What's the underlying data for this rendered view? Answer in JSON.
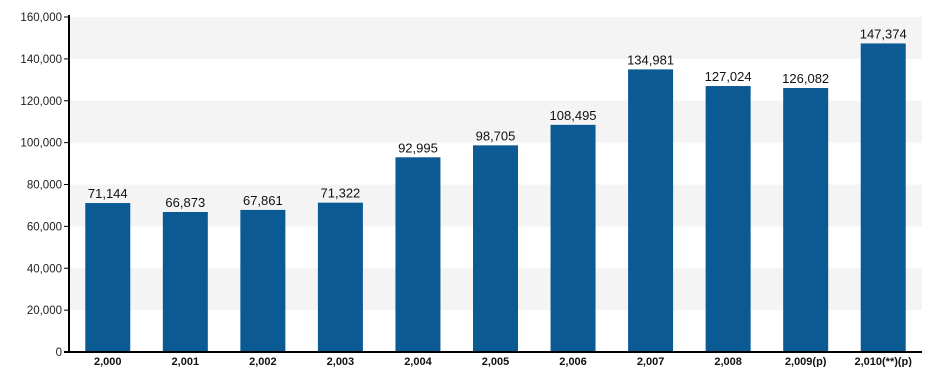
{
  "chart_data": {
    "type": "bar",
    "categories": [
      "2,000",
      "2,001",
      "2,002",
      "2,003",
      "2,004",
      "2,005",
      "2,006",
      "2,007",
      "2,008",
      "2,009(p)",
      "2,010(**)(p)"
    ],
    "values": [
      71144,
      66873,
      67861,
      71322,
      92995,
      98705,
      108495,
      134981,
      127024,
      126082,
      147374
    ],
    "data_labels": [
      "71,144",
      "66,873",
      "67,861",
      "71,322",
      "92,995",
      "98,705",
      "108,495",
      "134,981",
      "127,024",
      "126,082",
      "147,374"
    ],
    "y_ticks": [
      0,
      20000,
      40000,
      60000,
      80000,
      100000,
      120000,
      140000,
      160000
    ],
    "y_tick_labels": [
      "0",
      "20,000",
      "40,000",
      "60,000",
      "80,000",
      "100,000",
      "120,000",
      "140,000",
      "160,000"
    ],
    "ylim": [
      0,
      160000
    ],
    "grid": "alternating horizontal bands",
    "legend": "none",
    "colors": {
      "bar": "#0b5a94",
      "band": "#f4f4f4",
      "axis": "#000000"
    }
  }
}
